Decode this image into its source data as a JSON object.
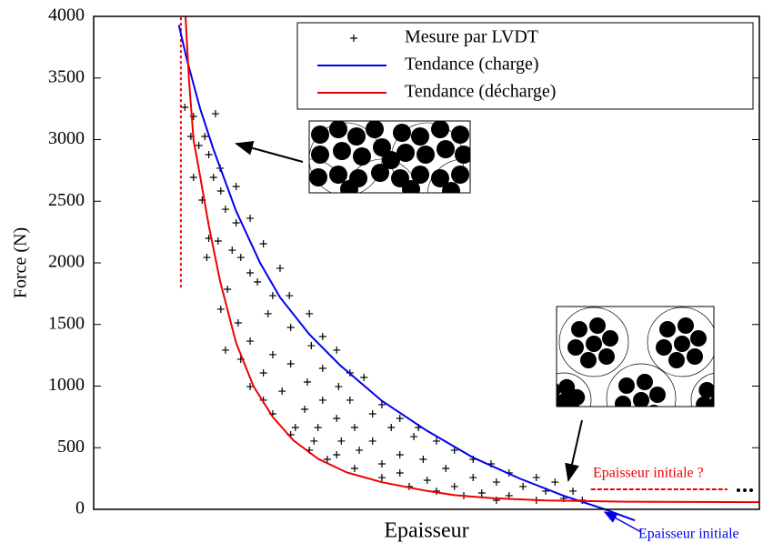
{
  "chart_data": {
    "type": "line",
    "xlabel": "Epaisseur",
    "ylabel": "Force (N)",
    "xlim": [
      0,
      100
    ],
    "ylim": [
      0,
      4000
    ],
    "yticks": [
      0,
      500,
      1000,
      1500,
      2000,
      2500,
      3000,
      3500,
      4000
    ],
    "legend": "top-right",
    "series": [
      {
        "name": "Mesure par LVDT",
        "type": "scatter",
        "color": "#000000",
        "x": [
          13.7,
          15.0,
          14.6,
          16.7,
          18.3,
          15.8,
          17.3,
          19.0,
          15.0,
          18.0,
          21.4,
          19.1,
          16.3,
          19.8,
          23.5,
          21.4,
          17.3,
          18.7,
          25.5,
          20.8,
          22.1,
          17.0,
          28.0,
          23.5,
          24.6,
          20.1,
          26.9,
          29.4,
          19.1,
          26.2,
          32.4,
          21.7,
          29.6,
          34.4,
          23.5,
          19.8,
          32.7,
          26.9,
          36.5,
          22.1,
          29.6,
          34.4,
          38.5,
          25.5,
          23.5,
          32.1,
          36.8,
          40.6,
          28.3,
          25.5,
          34.4,
          38.5,
          43.3,
          31.7,
          26.9,
          36.5,
          41.9,
          46.0,
          30.3,
          33.7,
          39.2,
          44.7,
          48.8,
          29.6,
          33.1,
          37.2,
          41.9,
          48.1,
          51.5,
          32.4,
          36.5,
          39.9,
          46.0,
          54.2,
          35.1,
          43.3,
          49.5,
          57.0,
          39.2,
          46.0,
          52.9,
          59.7,
          43.3,
          50.1,
          57.0,
          62.4,
          47.4,
          54.2,
          60.5,
          66.5,
          51.5,
          58.3,
          64.5,
          69.3,
          55.6,
          62.4,
          67.9,
          72.0,
          60.5,
          66.5,
          73.4,
          70.6
        ],
        "values": [
          3262,
          3188,
          3026,
          3026,
          3210,
          2952,
          2878,
          2768,
          2694,
          2694,
          2620,
          2583,
          2509,
          2435,
          2362,
          2325,
          2199,
          2177,
          2155,
          2103,
          2044,
          2044,
          1956,
          1919,
          1845,
          1786,
          1734,
          1734,
          1624,
          1587,
          1587,
          1513,
          1476,
          1402,
          1365,
          1292,
          1328,
          1255,
          1292,
          1218,
          1181,
          1144,
          1107,
          1107,
          996,
          1033,
          996,
          1070,
          959,
          886,
          886,
          886,
          849,
          812,
          775,
          738,
          775,
          738,
          664,
          664,
          664,
          664,
          664,
          605,
          554,
          554,
          554,
          590,
          554,
          480,
          443,
          480,
          443,
          480,
          406,
          369,
          406,
          406,
          332,
          295,
          332,
          369,
          258,
          236,
          258,
          295,
          185,
          185,
          221,
          258,
          148,
          133,
          185,
          221,
          111,
          111,
          148,
          148,
          74,
          74,
          74,
          89
        ]
      },
      {
        "name": "Tendance (charge)",
        "type": "line",
        "color": "#0000ee",
        "x": [
          12.8,
          14,
          16,
          18,
          21.4,
          25,
          28,
          32.4,
          37,
          43.3,
          50,
          57,
          64,
          70.6,
          76.8,
          81.3
        ],
        "values": [
          3930,
          3650,
          3250,
          2920,
          2420,
          2000,
          1720,
          1420,
          1170,
          880,
          640,
          420,
          250,
          110,
          0,
          -90
        ]
      },
      {
        "name": "Tendance (décharge)",
        "type": "line",
        "color": "#ee0000",
        "x": [
          13.8,
          14.3,
          15,
          16,
          17.3,
          19,
          21.4,
          24,
          26.9,
          30,
          33.7,
          38,
          43.3,
          50,
          54.2,
          60,
          67.9,
          80,
          100
        ],
        "values": [
          4000,
          3500,
          3000,
          2700,
          2300,
          1850,
          1350,
          1000,
          750,
          560,
          410,
          300,
          220,
          150,
          115,
          90,
          72,
          62,
          58
        ]
      }
    ],
    "reference_lines": [
      {
        "x": [
          13.1,
          13.1
        ],
        "y": [
          1800,
          4000
        ],
        "color": "#ee0000",
        "dash": "3,3"
      },
      {
        "x": [
          74.7,
          95.2
        ],
        "y": [
          162,
          162
        ],
        "color": "#ee0000",
        "dash": "5,2"
      }
    ],
    "annotations": [
      {
        "text": "Epaisseur initiale ?",
        "color": "#ee0000"
      },
      {
        "text": "Epaisseur initiale",
        "color": "#0000ee"
      }
    ]
  }
}
